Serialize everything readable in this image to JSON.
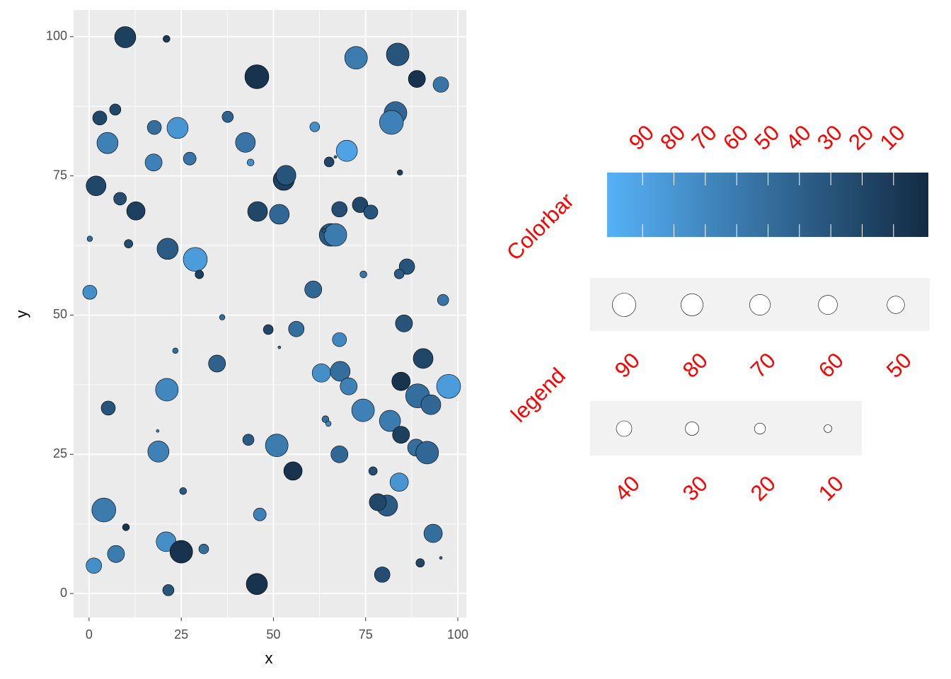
{
  "chart_data": {
    "type": "scatter",
    "x_label": "x",
    "y_label": "y",
    "xlim": [
      -4.2,
      102.3
    ],
    "ylim": [
      -4.3,
      104.8
    ],
    "xticks": [
      0,
      25,
      50,
      75,
      100
    ],
    "yticks": [
      0,
      25,
      50,
      75,
      100
    ],
    "grid": true,
    "series": [
      {
        "x": [
          9.8,
          21,
          72.4,
          83.7,
          45.5,
          88.9,
          95.4,
          7.1,
          2.9,
          37.6,
          83.1,
          82,
          61.2,
          5,
          17.7,
          24,
          42.4,
          69.9,
          17.5,
          27.3,
          43.8,
          65.1,
          66.8,
          1.9,
          8.4,
          12.7,
          52.8,
          53.4,
          84.3,
          45.7,
          51.6,
          67.9,
          73.5,
          76.4,
          0.2,
          10.7,
          21.3,
          28.8,
          29.9,
          65.5,
          66.8,
          63.7,
          74.4,
          86.2,
          84.1,
          0.2,
          60.8,
          96,
          36.1,
          48.6,
          56.2,
          85.4,
          67.9,
          51.6,
          23.4,
          34.7,
          63,
          68.1,
          90.6,
          84.6,
          97.5,
          21.1,
          70.4,
          89.1,
          92.7,
          5.2,
          74.3,
          64.1,
          64.9,
          81.6,
          18.6,
          84.6,
          43.2,
          50.9,
          18.8,
          67.9,
          88.7,
          91.7,
          55.3,
          77,
          84.1,
          25.5,
          4,
          46.3,
          80.8,
          78.3,
          93.3,
          10,
          20.9,
          25,
          7.3,
          31.1,
          1.3,
          79.5,
          89.8,
          95.4,
          45.5,
          21.5
        ],
        "y": [
          99.9,
          99.6,
          96.2,
          96.8,
          92.8,
          92.4,
          91.4,
          86.9,
          85.4,
          85.6,
          86.3,
          84.6,
          83.8,
          80.9,
          83.7,
          83.6,
          81,
          79.5,
          77.4,
          78.1,
          77.4,
          77.5,
          78.4,
          73.2,
          70.9,
          68.7,
          74.3,
          75.1,
          75.6,
          68.6,
          68.1,
          69,
          69.8,
          68.5,
          63.7,
          62.8,
          61.9,
          60,
          57.3,
          64.4,
          64.4,
          65.2,
          57.3,
          58.7,
          57.4,
          54.1,
          54.6,
          52.7,
          49.6,
          47.4,
          47.5,
          48.5,
          45.6,
          44.2,
          43.6,
          41.3,
          39.6,
          39.9,
          42.2,
          38.1,
          37.2,
          36.6,
          37.2,
          35.5,
          33.9,
          33.3,
          32.9,
          31.3,
          30.5,
          31,
          29.2,
          28.5,
          27.6,
          26.6,
          25.5,
          25,
          26.2,
          25.3,
          22,
          22,
          20,
          18.4,
          15,
          14.2,
          15.8,
          16.4,
          10.8,
          11.9,
          9.3,
          7.5,
          7.1,
          8,
          5,
          3.4,
          5.5,
          6.4,
          1.7,
          0.6
        ],
        "size": [
          74,
          8,
          85,
          85,
          95,
          48,
          40,
          21,
          33,
          21,
          85,
          95,
          16,
          74,
          33,
          74,
          65,
          74,
          48,
          27,
          8,
          16,
          1.3,
          65,
          27,
          56,
          74,
          65,
          5,
          65,
          65,
          40,
          40,
          33,
          5,
          12,
          74,
          95,
          12,
          85,
          85,
          3,
          8,
          40,
          16,
          33,
          48,
          21,
          5,
          16,
          40,
          48,
          33,
          1.3,
          5,
          48,
          56,
          65,
          65,
          56,
          95,
          85,
          48,
          95,
          65,
          33,
          85,
          8,
          5,
          74,
          1.3,
          48,
          21,
          85,
          74,
          48,
          48,
          85,
          56,
          12,
          56,
          8,
          95,
          27,
          74,
          48,
          56,
          8,
          65,
          85,
          48,
          16,
          40,
          40,
          12,
          1.3,
          74,
          21
        ],
        "color": [
          15,
          10,
          60,
          30,
          5,
          5,
          55,
          20,
          20,
          40,
          45,
          65,
          75,
          65,
          50,
          80,
          55,
          90,
          65,
          55,
          75,
          20,
          40,
          20,
          25,
          15,
          15,
          30,
          15,
          20,
          45,
          25,
          20,
          30,
          50,
          25,
          35,
          85,
          15,
          35,
          60,
          30,
          55,
          30,
          35,
          75,
          45,
          55,
          50,
          20,
          50,
          30,
          70,
          50,
          50,
          40,
          75,
          50,
          20,
          5,
          85,
          70,
          65,
          50,
          45,
          30,
          65,
          50,
          70,
          60,
          65,
          15,
          35,
          60,
          65,
          45,
          50,
          45,
          5,
          25,
          80,
          35,
          60,
          65,
          35,
          20,
          50,
          5,
          75,
          5,
          60,
          50,
          75,
          25,
          20,
          45,
          5,
          30
        ]
      }
    ],
    "colorbar": {
      "title": "Colorbar",
      "lim": [
        101.3,
        -1.1
      ],
      "ticks": [
        90,
        80,
        70,
        60,
        50,
        40,
        30,
        20,
        10
      ],
      "color_high": "#56B1F7",
      "color_low": "#132B43"
    },
    "size_legend": {
      "title": "legend",
      "breaks": [
        90,
        80,
        70,
        60,
        50,
        40,
        30,
        20,
        10
      ]
    }
  }
}
